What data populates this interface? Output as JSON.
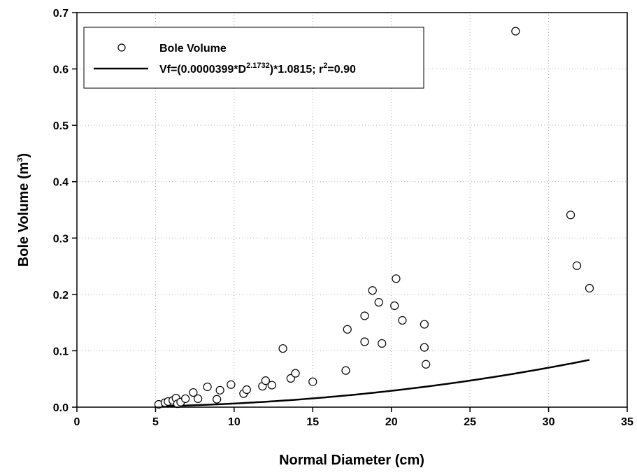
{
  "chart_data": {
    "type": "scatter",
    "xlabel": "Normal Diameter (cm)",
    "ylabel_main": "Bole Volume (m",
    "ylabel_sup": "3",
    "ylabel_end": ")",
    "xlim": [
      0,
      35
    ],
    "ylim": [
      0,
      0.7
    ],
    "xticks": [
      "0",
      "5",
      "10",
      "15",
      "20",
      "25",
      "30",
      "35"
    ],
    "yticks": [
      "0.0",
      "0.1",
      "0.2",
      "0.3",
      "0.4",
      "0.5",
      "0.6",
      "0.7"
    ],
    "grid": true,
    "legend_position": "top-left",
    "legend": {
      "points_label": "Bole Volume",
      "fit_label_a": "Vf=(0.0000399*D",
      "fit_label_exp": "2.1732",
      "fit_label_b": ")*1.0815;  r",
      "fit_label_r2sup": "2",
      "fit_label_c": "=0.90"
    },
    "fit": {
      "a": 3.99e-05,
      "b": 2.1732,
      "c": 1.0815,
      "x_range": [
        5.3,
        32.6
      ]
    },
    "points": [
      {
        "x": 5.2,
        "y": 0.005
      },
      {
        "x": 5.6,
        "y": 0.008
      },
      {
        "x": 5.8,
        "y": 0.01
      },
      {
        "x": 6.1,
        "y": 0.012
      },
      {
        "x": 6.3,
        "y": 0.016
      },
      {
        "x": 6.4,
        "y": 0.006
      },
      {
        "x": 6.6,
        "y": 0.009
      },
      {
        "x": 6.9,
        "y": 0.015
      },
      {
        "x": 7.4,
        "y": 0.026
      },
      {
        "x": 7.7,
        "y": 0.015
      },
      {
        "x": 8.3,
        "y": 0.036
      },
      {
        "x": 8.9,
        "y": 0.014
      },
      {
        "x": 9.1,
        "y": 0.03
      },
      {
        "x": 9.8,
        "y": 0.04
      },
      {
        "x": 10.6,
        "y": 0.024
      },
      {
        "x": 10.8,
        "y": 0.031
      },
      {
        "x": 11.8,
        "y": 0.037
      },
      {
        "x": 12.0,
        "y": 0.047
      },
      {
        "x": 12.4,
        "y": 0.039
      },
      {
        "x": 13.1,
        "y": 0.104
      },
      {
        "x": 13.6,
        "y": 0.051
      },
      {
        "x": 13.9,
        "y": 0.06
      },
      {
        "x": 15.0,
        "y": 0.045
      },
      {
        "x": 17.1,
        "y": 0.065
      },
      {
        "x": 17.2,
        "y": 0.138
      },
      {
        "x": 18.3,
        "y": 0.116
      },
      {
        "x": 18.3,
        "y": 0.162
      },
      {
        "x": 18.8,
        "y": 0.207
      },
      {
        "x": 19.2,
        "y": 0.186
      },
      {
        "x": 19.4,
        "y": 0.113
      },
      {
        "x": 20.2,
        "y": 0.18
      },
      {
        "x": 20.3,
        "y": 0.228
      },
      {
        "x": 20.7,
        "y": 0.154
      },
      {
        "x": 22.1,
        "y": 0.147
      },
      {
        "x": 22.1,
        "y": 0.106
      },
      {
        "x": 22.2,
        "y": 0.076
      },
      {
        "x": 27.9,
        "y": 0.667
      },
      {
        "x": 31.4,
        "y": 0.341
      },
      {
        "x": 31.8,
        "y": 0.251
      },
      {
        "x": 32.6,
        "y": 0.211
      }
    ]
  }
}
